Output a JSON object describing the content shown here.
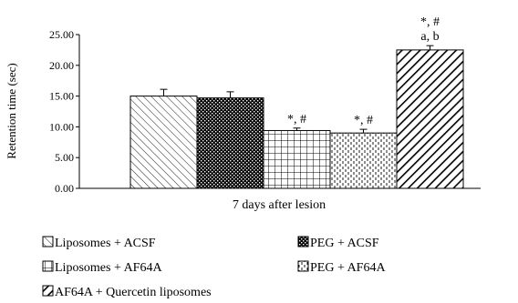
{
  "chart_data": {
    "type": "bar",
    "xlabel": "7 days after lesion",
    "ylabel": "Retention time (sec)",
    "ylim": [
      0,
      25
    ],
    "yticks": [
      "0.00",
      "5.00",
      "10.00",
      "15.00",
      "20.00",
      "25.00"
    ],
    "grid": false,
    "legend_position": "bottom",
    "series": [
      {
        "name": "Liposomes + ACSF",
        "value": 15.0,
        "error": 1.1,
        "pattern": "diag-light",
        "annotation": []
      },
      {
        "name": "PEG + ACSF",
        "value": 14.7,
        "error": 1.0,
        "pattern": "dense-check",
        "annotation": []
      },
      {
        "name": "Liposomes + AF64A",
        "value": 9.4,
        "error": 0.4,
        "pattern": "grid",
        "annotation": [
          "*, #"
        ]
      },
      {
        "name": "PEG + AF64A",
        "value": 9.0,
        "error": 0.6,
        "pattern": "dots",
        "annotation": [
          "*, #"
        ]
      },
      {
        "name": "AF64A + Quercetin liposomes",
        "value": 22.5,
        "error": 0.7,
        "pattern": "diag-bold",
        "annotation": [
          "*, #",
          "a, b"
        ]
      }
    ]
  }
}
